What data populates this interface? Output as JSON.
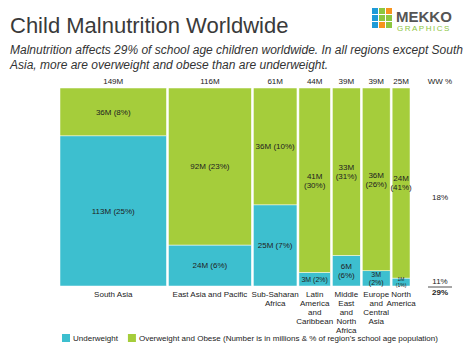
{
  "chart_data": {
    "type": "marimekko",
    "title": "Child Malnutrition Worldwide",
    "subtitle": "Malnutrition affects 29% of school age children worldwide. In all regions except South Asia, more are overweight and obese than are underweight.",
    "categories": [
      "South Asia",
      "East Asia and Pacific",
      "Sub-Saharan Africa",
      "Latin America and Caribbean",
      "Middle East and North Africa",
      "Europe and Central Asia",
      "North America"
    ],
    "widths": [
      149,
      116,
      61,
      44,
      39,
      39,
      25
    ],
    "width_labels": [
      "149M",
      "116M",
      "61M",
      "44M",
      "39M",
      "39M",
      "25M"
    ],
    "series": [
      {
        "name": "Underweight",
        "color": "#3dbfcf",
        "values": [
          113,
          24,
          25,
          3,
          6,
          3,
          1
        ],
        "value_labels": [
          "113M (25%)",
          "24M (6%)",
          "25M (7%)",
          "3M (2%)",
          "6M (6%)",
          "3M (2%)",
          "1M (1%)"
        ]
      },
      {
        "name": "Overweight and Obese (Number is in millions & % of region's school age population)",
        "color": "#a5cd3b",
        "values": [
          36,
          92,
          36,
          41,
          33,
          36,
          24
        ],
        "value_labels": [
          "36M (8%)",
          "92M (23%)",
          "36M (10%)",
          "41M (30%)",
          "33M (31%)",
          "36M (26%)",
          "24M (41%)"
        ]
      }
    ],
    "annotations": [
      "WW %",
      "18%",
      "11%",
      "29%"
    ],
    "logo": [
      "MEKKO",
      "GRAPHICS"
    ],
    "stacked": true,
    "data_labels": true,
    "tick_labels": "x",
    "legend": "bottom"
  }
}
